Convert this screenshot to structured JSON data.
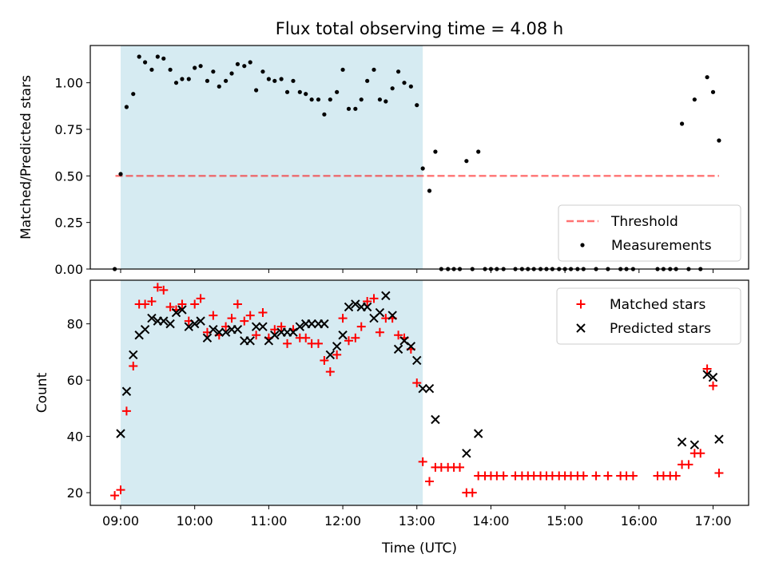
{
  "figure": {
    "title": "Flux total observing time = 4.08 h",
    "xlabel": "Time (UTC)",
    "x_ticks": [
      "09:00",
      "10:00",
      "11:00",
      "12:00",
      "13:00",
      "14:00",
      "15:00",
      "16:00",
      "17:00"
    ],
    "x_tick_hours": [
      9,
      10,
      11,
      12,
      13,
      14,
      15,
      16,
      17
    ],
    "xlim_hours": [
      8.59,
      17.48
    ],
    "shaded_span_hours": [
      9.0,
      13.08
    ],
    "colors": {
      "shade": "#add8e6",
      "threshold": "#ff0000",
      "measurement": "#000000",
      "matched": "#ff0000",
      "predicted": "#000000"
    }
  },
  "chart_data": [
    {
      "type": "scatter",
      "ylabel": "Matched/Predicted stars",
      "ylim": [
        0.0,
        1.2
      ],
      "y_ticks": [
        "0.00",
        "0.25",
        "0.50",
        "0.75",
        "1.00"
      ],
      "y_tick_values": [
        0.0,
        0.25,
        0.5,
        0.75,
        1.0
      ],
      "legend_position": "lower-right",
      "threshold": {
        "name": "Threshold",
        "value": 0.5,
        "x_range_hours": [
          8.93,
          17.08
        ],
        "style": "dashed"
      },
      "series": [
        {
          "name": "Measurements",
          "marker": "dot",
          "points": [
            [
              8.92,
              0.0
            ],
            [
              9.0,
              0.51
            ],
            [
              9.08,
              0.87
            ],
            [
              9.17,
              0.94
            ],
            [
              9.25,
              1.14
            ],
            [
              9.33,
              1.11
            ],
            [
              9.42,
              1.07
            ],
            [
              9.5,
              1.14
            ],
            [
              9.58,
              1.13
            ],
            [
              9.67,
              1.07
            ],
            [
              9.75,
              1.0
            ],
            [
              9.83,
              1.02
            ],
            [
              9.92,
              1.02
            ],
            [
              10.0,
              1.08
            ],
            [
              10.08,
              1.09
            ],
            [
              10.17,
              1.01
            ],
            [
              10.25,
              1.06
            ],
            [
              10.33,
              0.98
            ],
            [
              10.42,
              1.01
            ],
            [
              10.5,
              1.05
            ],
            [
              10.58,
              1.1
            ],
            [
              10.67,
              1.09
            ],
            [
              10.75,
              1.11
            ],
            [
              10.83,
              0.96
            ],
            [
              10.92,
              1.06
            ],
            [
              11.0,
              1.02
            ],
            [
              11.08,
              1.01
            ],
            [
              11.17,
              1.02
            ],
            [
              11.25,
              0.95
            ],
            [
              11.33,
              1.01
            ],
            [
              11.42,
              0.95
            ],
            [
              11.5,
              0.94
            ],
            [
              11.58,
              0.91
            ],
            [
              11.67,
              0.91
            ],
            [
              11.75,
              0.83
            ],
            [
              11.83,
              0.91
            ],
            [
              11.92,
              0.95
            ],
            [
              12.0,
              1.07
            ],
            [
              12.08,
              0.86
            ],
            [
              12.17,
              0.86
            ],
            [
              12.25,
              0.91
            ],
            [
              12.33,
              1.01
            ],
            [
              12.42,
              1.07
            ],
            [
              12.5,
              0.91
            ],
            [
              12.58,
              0.9
            ],
            [
              12.67,
              0.97
            ],
            [
              12.75,
              1.06
            ],
            [
              12.83,
              1.0
            ],
            [
              12.92,
              0.98
            ],
            [
              13.0,
              0.88
            ],
            [
              13.08,
              0.54
            ],
            [
              13.17,
              0.42
            ],
            [
              13.25,
              0.63
            ],
            [
              13.33,
              0.0
            ],
            [
              13.42,
              0.0
            ],
            [
              13.5,
              0.0
            ],
            [
              13.58,
              0.0
            ],
            [
              13.67,
              0.58
            ],
            [
              13.75,
              0.0
            ],
            [
              13.83,
              0.63
            ],
            [
              13.92,
              0.0
            ],
            [
              14.0,
              0.0
            ],
            [
              14.08,
              0.0
            ],
            [
              14.17,
              0.0
            ],
            [
              14.33,
              0.0
            ],
            [
              14.42,
              0.0
            ],
            [
              14.5,
              0.0
            ],
            [
              14.58,
              0.0
            ],
            [
              14.67,
              0.0
            ],
            [
              14.75,
              0.0
            ],
            [
              14.83,
              0.0
            ],
            [
              14.92,
              0.0
            ],
            [
              15.0,
              0.0
            ],
            [
              15.08,
              0.0
            ],
            [
              15.17,
              0.0
            ],
            [
              15.25,
              0.0
            ],
            [
              15.42,
              0.0
            ],
            [
              15.58,
              0.0
            ],
            [
              15.75,
              0.0
            ],
            [
              15.83,
              0.0
            ],
            [
              15.92,
              0.0
            ],
            [
              16.25,
              0.0
            ],
            [
              16.33,
              0.0
            ],
            [
              16.42,
              0.0
            ],
            [
              16.5,
              0.0
            ],
            [
              16.58,
              0.78
            ],
            [
              16.67,
              0.0
            ],
            [
              16.75,
              0.91
            ],
            [
              16.83,
              0.0
            ],
            [
              16.92,
              1.03
            ],
            [
              17.0,
              0.95
            ],
            [
              17.08,
              0.69
            ]
          ]
        }
      ]
    },
    {
      "type": "scatter",
      "ylabel": "Count",
      "ylim": [
        15.5,
        95.5
      ],
      "y_ticks": [
        "20",
        "40",
        "60",
        "80"
      ],
      "y_tick_values": [
        20,
        40,
        60,
        80
      ],
      "legend_position": "top-right",
      "series": [
        {
          "name": "Matched stars",
          "marker": "plus",
          "points": [
            [
              8.92,
              19
            ],
            [
              9.0,
              21
            ],
            [
              9.08,
              49
            ],
            [
              9.17,
              65
            ],
            [
              9.25,
              87
            ],
            [
              9.33,
              87
            ],
            [
              9.42,
              88
            ],
            [
              9.5,
              93
            ],
            [
              9.58,
              92
            ],
            [
              9.67,
              86
            ],
            [
              9.75,
              85
            ],
            [
              9.83,
              87
            ],
            [
              9.92,
              81
            ],
            [
              10.0,
              87
            ],
            [
              10.08,
              89
            ],
            [
              10.17,
              77
            ],
            [
              10.25,
              83
            ],
            [
              10.33,
              76
            ],
            [
              10.42,
              79
            ],
            [
              10.5,
              82
            ],
            [
              10.58,
              87
            ],
            [
              10.67,
              81
            ],
            [
              10.75,
              83
            ],
            [
              10.83,
              76
            ],
            [
              10.92,
              84
            ],
            [
              11.0,
              75
            ],
            [
              11.08,
              78
            ],
            [
              11.17,
              79
            ],
            [
              11.25,
              73
            ],
            [
              11.33,
              78
            ],
            [
              11.42,
              75
            ],
            [
              11.5,
              75
            ],
            [
              11.58,
              73
            ],
            [
              11.67,
              73
            ],
            [
              11.75,
              67
            ],
            [
              11.83,
              63
            ],
            [
              11.92,
              69
            ],
            [
              12.0,
              82
            ],
            [
              12.08,
              74
            ],
            [
              12.17,
              75
            ],
            [
              12.25,
              79
            ],
            [
              12.33,
              88
            ],
            [
              12.42,
              89
            ],
            [
              12.5,
              77
            ],
            [
              12.58,
              82
            ],
            [
              12.67,
              82
            ],
            [
              12.75,
              76
            ],
            [
              12.83,
              75
            ],
            [
              12.92,
              71
            ],
            [
              13.0,
              59
            ],
            [
              13.08,
              31
            ],
            [
              13.17,
              24
            ],
            [
              13.25,
              29
            ],
            [
              13.33,
              29
            ],
            [
              13.42,
              29
            ],
            [
              13.5,
              29
            ],
            [
              13.58,
              29
            ],
            [
              13.67,
              20
            ],
            [
              13.75,
              20
            ],
            [
              13.83,
              26
            ],
            [
              13.92,
              26
            ],
            [
              14.0,
              26
            ],
            [
              14.08,
              26
            ],
            [
              14.17,
              26
            ],
            [
              14.33,
              26
            ],
            [
              14.42,
              26
            ],
            [
              14.5,
              26
            ],
            [
              14.58,
              26
            ],
            [
              14.67,
              26
            ],
            [
              14.75,
              26
            ],
            [
              14.83,
              26
            ],
            [
              14.92,
              26
            ],
            [
              15.0,
              26
            ],
            [
              15.08,
              26
            ],
            [
              15.17,
              26
            ],
            [
              15.25,
              26
            ],
            [
              15.42,
              26
            ],
            [
              15.58,
              26
            ],
            [
              15.75,
              26
            ],
            [
              15.83,
              26
            ],
            [
              15.92,
              26
            ],
            [
              16.25,
              26
            ],
            [
              16.33,
              26
            ],
            [
              16.42,
              26
            ],
            [
              16.5,
              26
            ],
            [
              16.58,
              30
            ],
            [
              16.67,
              30
            ],
            [
              16.75,
              34
            ],
            [
              16.83,
              34
            ],
            [
              16.92,
              64
            ],
            [
              17.0,
              58
            ],
            [
              17.08,
              27
            ]
          ]
        },
        {
          "name": "Predicted stars",
          "marker": "x",
          "points": [
            [
              9.0,
              41
            ],
            [
              9.08,
              56
            ],
            [
              9.17,
              69
            ],
            [
              9.25,
              76
            ],
            [
              9.33,
              78
            ],
            [
              9.42,
              82
            ],
            [
              9.5,
              81
            ],
            [
              9.58,
              81
            ],
            [
              9.67,
              80
            ],
            [
              9.75,
              84
            ],
            [
              9.83,
              85
            ],
            [
              9.92,
              79
            ],
            [
              10.0,
              80
            ],
            [
              10.08,
              81
            ],
            [
              10.17,
              75
            ],
            [
              10.25,
              78
            ],
            [
              10.33,
              77
            ],
            [
              10.42,
              77
            ],
            [
              10.5,
              78
            ],
            [
              10.58,
              78
            ],
            [
              10.67,
              74
            ],
            [
              10.75,
              74
            ],
            [
              10.83,
              79
            ],
            [
              10.92,
              79
            ],
            [
              11.0,
              74
            ],
            [
              11.08,
              76
            ],
            [
              11.17,
              77
            ],
            [
              11.25,
              77
            ],
            [
              11.33,
              77
            ],
            [
              11.42,
              79
            ],
            [
              11.5,
              80
            ],
            [
              11.58,
              80
            ],
            [
              11.67,
              80
            ],
            [
              11.75,
              80
            ],
            [
              11.83,
              69
            ],
            [
              11.92,
              72
            ],
            [
              12.0,
              76
            ],
            [
              12.08,
              86
            ],
            [
              12.17,
              87
            ],
            [
              12.25,
              86
            ],
            [
              12.33,
              86
            ],
            [
              12.42,
              82
            ],
            [
              12.5,
              84
            ],
            [
              12.58,
              90
            ],
            [
              12.67,
              83
            ],
            [
              12.75,
              71
            ],
            [
              12.83,
              74
            ],
            [
              12.92,
              72
            ],
            [
              13.0,
              67
            ],
            [
              13.08,
              57
            ],
            [
              13.17,
              57
            ],
            [
              13.25,
              46
            ],
            [
              13.67,
              34
            ],
            [
              13.83,
              41
            ],
            [
              16.58,
              38
            ],
            [
              16.75,
              37
            ],
            [
              16.92,
              62
            ],
            [
              17.0,
              61
            ],
            [
              17.08,
              39
            ]
          ]
        }
      ]
    }
  ]
}
